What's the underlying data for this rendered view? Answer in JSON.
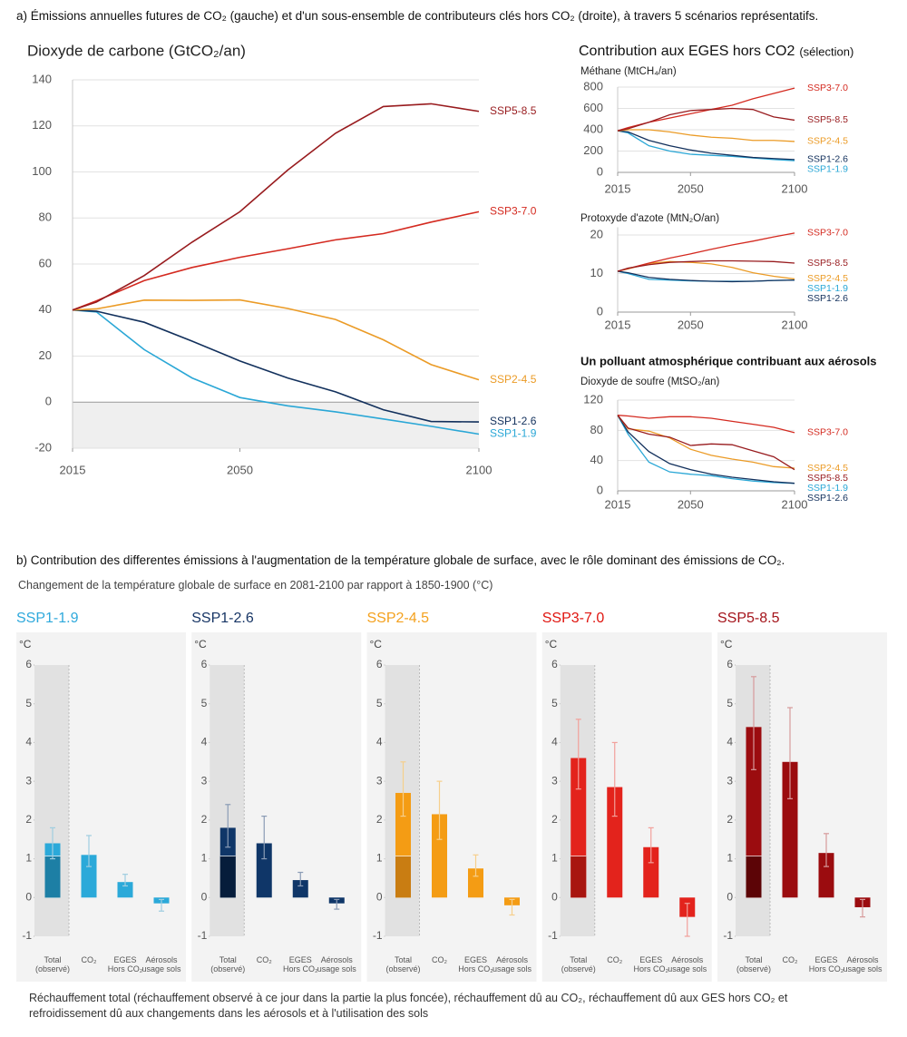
{
  "caption_a": "a) Émissions annuelles futures de CO₂ (gauche) et d'un sous-ensemble de contributeurs clés hors CO₂ (droite), à travers 5 scénarios représentatifs.",
  "nonco2_title": "Contribution aux EGES hors CO2",
  "nonco2_title_note": "(sélection)",
  "aerosol_heading": "Un polluant atmosphérique contribuant aux aérosols",
  "caption_b": "b) Contribution des  differentes émissions à l'augmentation de la température globale de surface, avec le rôle dominant des émissions de CO₂.",
  "subtitle_b": "Changement de la température globale de surface en 2081-2100 par rapport à 1850-1900 (°C)",
  "footnote_b": "Réchauffement total (réchauffement observé à ce jour dans la partie la plus foncée), réchauffement dû au CO₂, réchauffement dû aux GES hors CO₂ et refroidissement dû aux changements dans les aérosols et à l'utilisation des sols",
  "chart_data": [
    {
      "type": "line",
      "title": "Dioxyde de carbone (GtCO₂/an)",
      "x": [
        2015,
        2020,
        2030,
        2040,
        2050,
        2060,
        2070,
        2080,
        2090,
        2100
      ],
      "xlim": [
        2015,
        2100
      ],
      "xticks": [
        2015,
        2050,
        2100
      ],
      "ylim": [
        -20,
        140
      ],
      "yticks": [
        -20,
        0,
        20,
        40,
        60,
        80,
        100,
        120,
        140
      ],
      "grid": true,
      "series": [
        {
          "name": "SSP1-1.9",
          "color": "#2aa7d6",
          "values": [
            40,
            39.2,
            22.8,
            10.5,
            2.0,
            -1.6,
            -4.2,
            -7.3,
            -10.5,
            -13.9
          ]
        },
        {
          "name": "SSP1-2.6",
          "color": "#12305c",
          "values": [
            40,
            39.5,
            34.7,
            26.5,
            17.9,
            10.5,
            4.5,
            -3.3,
            -8.4,
            -8.6
          ]
        },
        {
          "name": "SSP2-4.5",
          "color": "#eb9b26",
          "values": [
            40,
            40.5,
            44.3,
            44.2,
            44.4,
            40.7,
            35.9,
            27.1,
            16.3,
            9.7
          ]
        },
        {
          "name": "SSP3-7.0",
          "color": "#d42a20",
          "values": [
            40,
            44,
            52.8,
            58.5,
            62.9,
            66.6,
            70.5,
            73.2,
            78.2,
            82.7
          ]
        },
        {
          "name": "SSP5-8.5",
          "color": "#981b1e",
          "values": [
            40,
            43.5,
            55,
            69.5,
            82.7,
            100.8,
            116.8,
            128.4,
            129.6,
            126.3
          ]
        }
      ]
    },
    {
      "type": "line",
      "title": "Méthane (MtCH₄/an)",
      "x": [
        2015,
        2020,
        2030,
        2040,
        2050,
        2060,
        2070,
        2080,
        2090,
        2100
      ],
      "xlim": [
        2015,
        2100
      ],
      "xticks": [
        2015,
        2050,
        2100
      ],
      "ylim": [
        0,
        800
      ],
      "yticks": [
        0,
        200,
        400,
        600,
        800
      ],
      "grid": true,
      "series": [
        {
          "name": "SSP1-1.9",
          "color": "#2aa7d6",
          "values": [
            390,
            370,
            250,
            200,
            170,
            160,
            150,
            135,
            120,
            110
          ]
        },
        {
          "name": "SSP1-2.6",
          "color": "#12305c",
          "values": [
            390,
            380,
            300,
            250,
            210,
            180,
            160,
            140,
            130,
            120
          ]
        },
        {
          "name": "SSP2-4.5",
          "color": "#eb9b26",
          "values": [
            390,
            400,
            400,
            380,
            350,
            330,
            320,
            300,
            300,
            290
          ]
        },
        {
          "name": "SSP3-7.0",
          "color": "#d42a20",
          "values": [
            390,
            420,
            470,
            510,
            550,
            590,
            630,
            690,
            740,
            790
          ]
        },
        {
          "name": "SSP5-8.5",
          "color": "#981b1e",
          "values": [
            390,
            410,
            470,
            540,
            580,
            590,
            600,
            590,
            520,
            490
          ]
        }
      ]
    },
    {
      "type": "line",
      "title": "Protoxyde d'azote (MtN₂O/an)",
      "x": [
        2015,
        2020,
        2030,
        2040,
        2050,
        2060,
        2070,
        2080,
        2090,
        2100
      ],
      "xlim": [
        2015,
        2100
      ],
      "xticks": [
        2015,
        2050,
        2100
      ],
      "ylim": [
        0,
        22
      ],
      "yticks": [
        0,
        10,
        20
      ],
      "grid": true,
      "series": [
        {
          "name": "SSP1-1.9",
          "color": "#2aa7d6",
          "values": [
            10.6,
            10.0,
            8.5,
            8.3,
            8.1,
            8.0,
            8.0,
            8.0,
            8.2,
            8.3
          ]
        },
        {
          "name": "SSP1-2.6",
          "color": "#12305c",
          "values": [
            10.6,
            10.2,
            9.0,
            8.5,
            8.2,
            8.0,
            7.9,
            8.0,
            8.2,
            8.3
          ]
        },
        {
          "name": "SSP2-4.5",
          "color": "#eb9b26",
          "values": [
            10.6,
            11.2,
            12.6,
            13.1,
            12.9,
            12.5,
            11.6,
            10.2,
            9.3,
            8.6
          ]
        },
        {
          "name": "SSP3-7.0",
          "color": "#d42a20",
          "values": [
            10.6,
            11.3,
            12.7,
            14.0,
            15.1,
            16.3,
            17.4,
            18.4,
            19.5,
            20.5
          ]
        },
        {
          "name": "SSP5-8.5",
          "color": "#981b1e",
          "values": [
            10.6,
            11.4,
            12.3,
            12.9,
            13.1,
            13.3,
            13.3,
            13.2,
            13.1,
            12.7
          ]
        }
      ]
    },
    {
      "type": "line",
      "title": "Dioxyde de soufre (MtSO₂/an)",
      "x": [
        2015,
        2020,
        2030,
        2040,
        2050,
        2060,
        2070,
        2080,
        2090,
        2100
      ],
      "xlim": [
        2015,
        2100
      ],
      "xticks": [
        2015,
        2050,
        2100
      ],
      "ylim": [
        0,
        120
      ],
      "yticks": [
        0,
        40,
        80,
        120
      ],
      "grid": true,
      "series": [
        {
          "name": "SSP1-1.9",
          "color": "#2aa7d6",
          "values": [
            100,
            75,
            38,
            25,
            22,
            20,
            16,
            13,
            11,
            10
          ]
        },
        {
          "name": "SSP1-2.6",
          "color": "#12305c",
          "values": [
            100,
            78,
            52,
            36,
            28,
            22,
            18,
            15,
            12,
            10
          ]
        },
        {
          "name": "SSP2-4.5",
          "color": "#eb9b26",
          "values": [
            100,
            82,
            79,
            70,
            55,
            47,
            42,
            38,
            32,
            30
          ]
        },
        {
          "name": "SSP3-7.0",
          "color": "#d42a20",
          "values": [
            100,
            99,
            96,
            98,
            98,
            96,
            92,
            88,
            84,
            77
          ]
        },
        {
          "name": "SSP5-8.5",
          "color": "#981b1e",
          "values": [
            100,
            83,
            75,
            71,
            60,
            62,
            61,
            53,
            45,
            28
          ]
        }
      ]
    },
    {
      "type": "bar",
      "title": "SSP1-1.9",
      "title_color": "#2fa9dc",
      "y_label": "°C",
      "categories": [
        "Total (observé)",
        "CO₂",
        "EGES Hors CO₂",
        "Aérosols usage sols"
      ],
      "values": [
        1.4,
        1.1,
        0.4,
        -0.15
      ],
      "ranges": [
        [
          1.0,
          1.8
        ],
        [
          0.8,
          1.6
        ],
        [
          0.3,
          0.6
        ],
        [
          -0.35,
          -0.05
        ]
      ],
      "observed": 1.07,
      "color": "#2ba9d9",
      "observed_color": "#1d7fa5",
      "error_color": "#9fcde0",
      "ylim": [
        -1,
        6
      ],
      "yticks": [
        -1,
        0,
        1,
        2,
        3,
        4,
        5,
        6
      ]
    },
    {
      "type": "bar",
      "title": "SSP1-2.6",
      "title_color": "#173565",
      "y_label": "°C",
      "categories": [
        "Total (observé)",
        "CO₂",
        "EGES Hors CO₂",
        "Aérosols usage sols"
      ],
      "values": [
        1.8,
        1.4,
        0.45,
        -0.15
      ],
      "ranges": [
        [
          1.3,
          2.4
        ],
        [
          1.0,
          2.1
        ],
        [
          0.3,
          0.65
        ],
        [
          -0.3,
          -0.05
        ]
      ],
      "observed": 1.07,
      "color": "#0f3668",
      "observed_color": "#061d3b",
      "error_color": "#8a9bb5",
      "ylim": [
        -1,
        6
      ],
      "yticks": [
        -1,
        0,
        1,
        2,
        3,
        4,
        5,
        6
      ]
    },
    {
      "type": "bar",
      "title": "SSP2-4.5",
      "title_color": "#f4a11e",
      "y_label": "°C",
      "categories": [
        "Total (observé)",
        "CO₂",
        "EGES Hors CO₂",
        "Aérosols usage sols"
      ],
      "values": [
        2.7,
        2.15,
        0.75,
        -0.2
      ],
      "ranges": [
        [
          2.1,
          3.5
        ],
        [
          1.5,
          3.0
        ],
        [
          0.55,
          1.1
        ],
        [
          -0.45,
          -0.05
        ]
      ],
      "observed": 1.07,
      "color": "#f49c14",
      "observed_color": "#c97d12",
      "error_color": "#f6cf8c",
      "ylim": [
        -1,
        6
      ],
      "yticks": [
        -1,
        0,
        1,
        2,
        3,
        4,
        5,
        6
      ]
    },
    {
      "type": "bar",
      "title": "SSP3-7.0",
      "title_color": "#e0150f",
      "y_label": "°C",
      "categories": [
        "Total (observé)",
        "CO₂",
        "EGES Hors CO₂",
        "Aérosols usage sols"
      ],
      "values": [
        3.6,
        2.85,
        1.3,
        -0.5
      ],
      "ranges": [
        [
          2.8,
          4.6
        ],
        [
          2.1,
          4.0
        ],
        [
          0.9,
          1.8
        ],
        [
          -1.0,
          -0.15
        ]
      ],
      "observed": 1.07,
      "color": "#e3231c",
      "observed_color": "#a8150f",
      "error_color": "#f2a09a",
      "ylim": [
        -1,
        6
      ],
      "yticks": [
        -1,
        0,
        1,
        2,
        3,
        4,
        5,
        6
      ]
    },
    {
      "type": "bar",
      "title": "SSP5-8.5",
      "title_color": "#a4131a",
      "y_label": "°C",
      "categories": [
        "Total (observé)",
        "CO₂",
        "EGES Hors CO₂",
        "Aérosols usage sols"
      ],
      "values": [
        4.4,
        3.5,
        1.15,
        -0.25
      ],
      "ranges": [
        [
          3.3,
          5.7
        ],
        [
          2.55,
          4.9
        ],
        [
          0.8,
          1.65
        ],
        [
          -0.5,
          -0.05
        ]
      ],
      "observed": 1.07,
      "color": "#9b0c0f",
      "observed_color": "#5c0406",
      "error_color": "#d79a9b",
      "ylim": [
        -1,
        6
      ],
      "yticks": [
        -1,
        0,
        1,
        2,
        3,
        4,
        5,
        6
      ]
    }
  ]
}
